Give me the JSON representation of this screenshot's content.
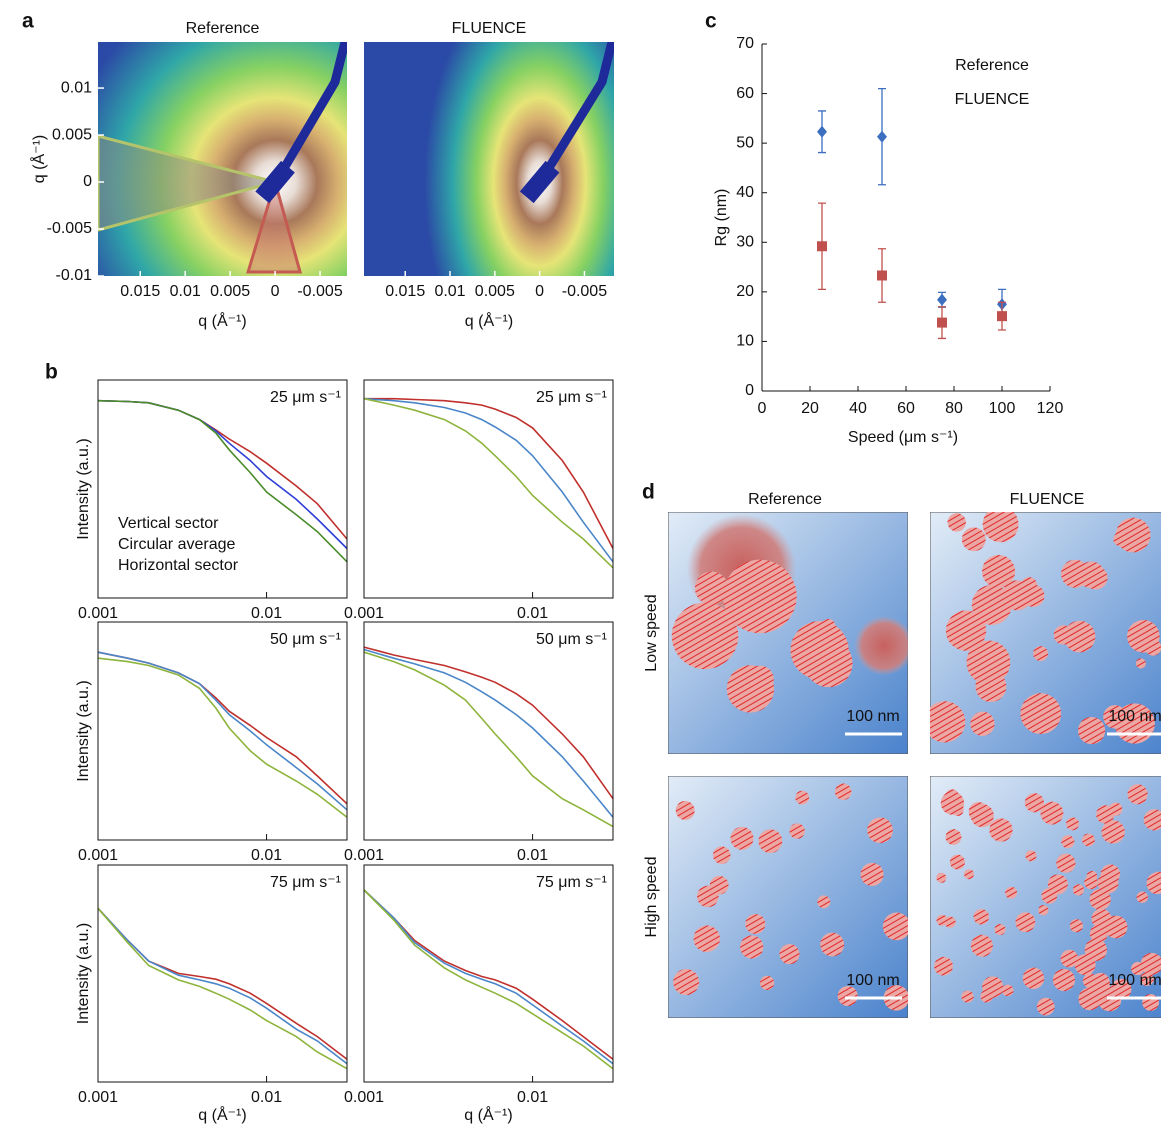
{
  "chart_data": [
    {
      "type": "heatmap",
      "panel": "a",
      "title": "Reference",
      "xlabel": "q (Å⁻¹)",
      "ylabel": "q (Å⁻¹)",
      "xlim": [
        0.0197,
        -0.008
      ],
      "ylim": [
        -0.01,
        0.0149
      ],
      "xticks": [
        0.015,
        0.01,
        0.005,
        0,
        -0.005
      ],
      "yticks": [
        -0.01,
        -0.005,
        0,
        0.005,
        0.01
      ]
    },
    {
      "type": "heatmap",
      "title": "FLUENCE",
      "xlabel": "q (Å⁻¹)",
      "xlim": [
        0.0196,
        -0.0083
      ],
      "ylim": [
        -0.01,
        0.0149
      ],
      "xticks": [
        0.015,
        0.01,
        0.005,
        0,
        -0.005
      ]
    },
    {
      "type": "line",
      "panel": "b",
      "label": "25 μm s⁻¹",
      "ylabel": "Intensity (a.u.)",
      "xscale": "log",
      "yscale": "log",
      "xlim": [
        0.001,
        0.03
      ],
      "ylim": [
        0.002,
        1.5
      ],
      "xticks": [
        0.001,
        0.01
      ],
      "x": [
        0.001,
        0.0015,
        0.002,
        0.003,
        0.004,
        0.005,
        0.006,
        0.008,
        0.01,
        0.015,
        0.02,
        0.03
      ],
      "series": [
        {
          "name": "Vertical sector",
          "color": "#c0302c",
          "values": [
            0.8,
            0.78,
            0.75,
            0.6,
            0.45,
            0.33,
            0.25,
            0.17,
            0.12,
            0.06,
            0.035,
            0.012
          ]
        },
        {
          "name": "Circular average",
          "color": "#2f3fd8",
          "values": [
            0.8,
            0.78,
            0.75,
            0.6,
            0.45,
            0.32,
            0.22,
            0.13,
            0.08,
            0.04,
            0.022,
            0.009
          ]
        },
        {
          "name": "Horizontal sector",
          "color": "#4a8c2a",
          "values": [
            0.8,
            0.78,
            0.75,
            0.6,
            0.45,
            0.3,
            0.18,
            0.09,
            0.05,
            0.025,
            0.015,
            0.006
          ]
        }
      ]
    },
    {
      "type": "line",
      "label": "25 μm s⁻¹",
      "xscale": "log",
      "yscale": "log",
      "xlim": [
        0.001,
        0.03
      ],
      "ylim": [
        0.002,
        1.5
      ],
      "xticks": [
        0.001,
        0.01
      ],
      "x": [
        0.001,
        0.0015,
        0.002,
        0.003,
        0.004,
        0.005,
        0.006,
        0.008,
        0.01,
        0.015,
        0.02,
        0.03
      ],
      "series": [
        {
          "color": "#c0302c",
          "values": [
            0.85,
            0.85,
            0.83,
            0.8,
            0.75,
            0.7,
            0.62,
            0.48,
            0.35,
            0.13,
            0.05,
            0.009
          ]
        },
        {
          "color": "#4a86c8",
          "values": [
            0.85,
            0.8,
            0.75,
            0.65,
            0.55,
            0.45,
            0.36,
            0.24,
            0.15,
            0.05,
            0.02,
            0.006
          ]
        },
        {
          "color": "#8db43c",
          "values": [
            0.85,
            0.7,
            0.6,
            0.45,
            0.32,
            0.22,
            0.15,
            0.08,
            0.045,
            0.02,
            0.012,
            0.005
          ]
        }
      ]
    },
    {
      "type": "line",
      "label": "50 μm s⁻¹",
      "ylabel": "Intensity (a.u.)",
      "xscale": "log",
      "yscale": "log",
      "xlim": [
        0.001,
        0.03
      ],
      "ylim": [
        0.002,
        1.5
      ],
      "xticks": [
        0.001,
        0.01
      ],
      "x": [
        0.001,
        0.0015,
        0.002,
        0.003,
        0.004,
        0.005,
        0.006,
        0.008,
        0.01,
        0.015,
        0.02,
        0.03
      ],
      "series": [
        {
          "color": "#c0302c",
          "values": [
            0.6,
            0.5,
            0.43,
            0.32,
            0.23,
            0.15,
            0.1,
            0.065,
            0.045,
            0.025,
            0.014,
            0.006
          ]
        },
        {
          "color": "#4a86c8",
          "values": [
            0.6,
            0.5,
            0.43,
            0.32,
            0.23,
            0.14,
            0.09,
            0.055,
            0.036,
            0.018,
            0.011,
            0.005
          ]
        },
        {
          "color": "#8db43c",
          "values": [
            0.5,
            0.45,
            0.4,
            0.3,
            0.2,
            0.11,
            0.06,
            0.03,
            0.02,
            0.012,
            0.008,
            0.004
          ]
        }
      ]
    },
    {
      "type": "line",
      "label": "50 μm s⁻¹",
      "xscale": "log",
      "yscale": "log",
      "xlim": [
        0.001,
        0.03
      ],
      "ylim": [
        0.002,
        1.5
      ],
      "xticks": [
        0.001,
        0.01
      ],
      "x": [
        0.001,
        0.0015,
        0.002,
        0.003,
        0.004,
        0.005,
        0.006,
        0.008,
        0.01,
        0.015,
        0.02,
        0.03
      ],
      "series": [
        {
          "color": "#c0302c",
          "values": [
            0.7,
            0.55,
            0.48,
            0.4,
            0.33,
            0.28,
            0.24,
            0.17,
            0.12,
            0.05,
            0.025,
            0.007
          ]
        },
        {
          "color": "#4a86c8",
          "values": [
            0.65,
            0.5,
            0.42,
            0.32,
            0.24,
            0.18,
            0.14,
            0.09,
            0.06,
            0.025,
            0.012,
            0.004
          ]
        },
        {
          "color": "#8db43c",
          "values": [
            0.6,
            0.45,
            0.35,
            0.22,
            0.14,
            0.08,
            0.05,
            0.025,
            0.014,
            0.007,
            0.005,
            0.003
          ]
        }
      ]
    },
    {
      "type": "line",
      "label": "75 μm s⁻¹",
      "ylabel": "Intensity (a.u.)",
      "xlabel": "q (Å⁻¹)",
      "xscale": "log",
      "yscale": "log",
      "xlim": [
        0.001,
        0.03
      ],
      "ylim": [
        0.002,
        1.5
      ],
      "xticks": [
        0.001,
        0.01
      ],
      "x": [
        0.001,
        0.0015,
        0.002,
        0.003,
        0.004,
        0.005,
        0.006,
        0.008,
        0.01,
        0.015,
        0.02,
        0.03
      ],
      "series": [
        {
          "color": "#c0302c",
          "values": [
            0.4,
            0.15,
            0.08,
            0.055,
            0.05,
            0.046,
            0.04,
            0.03,
            0.022,
            0.012,
            0.008,
            0.004
          ]
        },
        {
          "color": "#4a86c8",
          "values": [
            0.4,
            0.15,
            0.08,
            0.052,
            0.045,
            0.04,
            0.035,
            0.026,
            0.019,
            0.01,
            0.007,
            0.0035
          ]
        },
        {
          "color": "#8db43c",
          "values": [
            0.4,
            0.14,
            0.07,
            0.045,
            0.037,
            0.03,
            0.025,
            0.018,
            0.013,
            0.008,
            0.005,
            0.003
          ]
        }
      ]
    },
    {
      "type": "line",
      "label": "75 μm s⁻¹",
      "xlabel": "q (Å⁻¹)",
      "xscale": "log",
      "yscale": "log",
      "xlim": [
        0.001,
        0.03
      ],
      "ylim": [
        0.002,
        1.5
      ],
      "xticks": [
        0.001,
        0.01
      ],
      "x": [
        0.001,
        0.0015,
        0.002,
        0.003,
        0.004,
        0.005,
        0.006,
        0.008,
        0.01,
        0.015,
        0.02,
        0.03
      ],
      "series": [
        {
          "color": "#c0302c",
          "values": [
            0.7,
            0.3,
            0.15,
            0.08,
            0.06,
            0.05,
            0.045,
            0.035,
            0.025,
            0.013,
            0.008,
            0.004
          ]
        },
        {
          "color": "#4a86c8",
          "values": [
            0.7,
            0.3,
            0.14,
            0.075,
            0.055,
            0.046,
            0.04,
            0.03,
            0.021,
            0.011,
            0.007,
            0.0035
          ]
        },
        {
          "color": "#8db43c",
          "values": [
            0.7,
            0.28,
            0.13,
            0.065,
            0.045,
            0.036,
            0.03,
            0.022,
            0.016,
            0.009,
            0.006,
            0.003
          ]
        }
      ]
    },
    {
      "type": "scatter",
      "panel": "c",
      "xlabel": "Speed (μm s⁻¹)",
      "ylabel": "Rg (nm)",
      "legend": "upper right",
      "xlim": [
        0,
        120
      ],
      "ylim": [
        0,
        70
      ],
      "xticks": [
        0,
        20,
        40,
        60,
        80,
        100,
        120
      ],
      "yticks": [
        0,
        10,
        20,
        30,
        40,
        50,
        60,
        70
      ],
      "x": [
        25,
        50,
        75,
        100
      ],
      "series": [
        {
          "name": "Reference",
          "color": "#3c6fc0",
          "marker": "diamond",
          "values": [
            52.3,
            51.3,
            18.4,
            17.5
          ],
          "errors": [
            4.2,
            9.7,
            1.5,
            3.0
          ]
        },
        {
          "name": "FLUENCE",
          "color": "#c0504d",
          "marker": "square",
          "values": [
            29.2,
            23.3,
            13.8,
            15.1
          ],
          "errors": [
            8.7,
            5.4,
            3.2,
            2.8
          ]
        }
      ]
    }
  ],
  "diagram": {
    "panel": "d",
    "columns": [
      "Reference",
      "FLUENCE"
    ],
    "rows": [
      "Low speed",
      "High speed"
    ],
    "scale_bar": "100 nm"
  }
}
